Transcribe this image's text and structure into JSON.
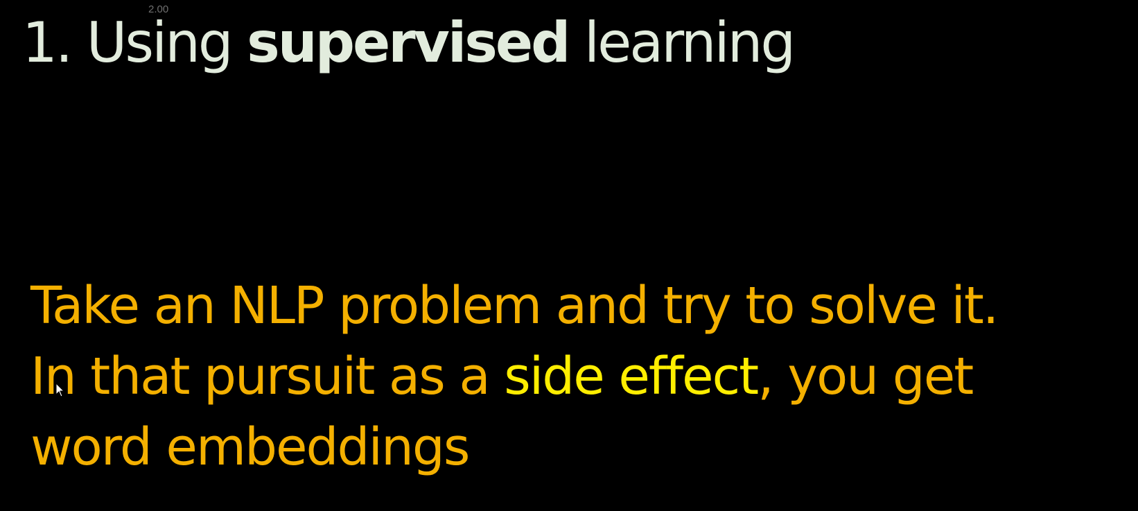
{
  "speed_badge": "2.00",
  "title": {
    "prefix": "1. Using ",
    "bold": "supervised",
    "suffix": " learning"
  },
  "body": {
    "line1": "Take an NLP problem and try to solve it.",
    "line2_pre": "In that pursuit as a ",
    "line2_highlight": "side effect",
    "line2_post": ", you get",
    "line3": "word embeddings"
  },
  "colors": {
    "background": "#000000",
    "title": "#e2ecdd",
    "body": "#f4b000",
    "highlight": "#ffee00"
  },
  "icons": {
    "cursor": "mouse-pointer-icon"
  }
}
